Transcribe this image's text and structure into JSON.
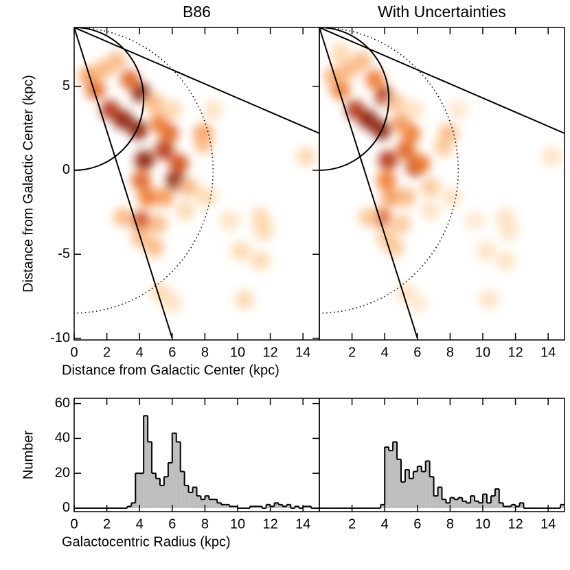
{
  "chart_data": [
    {
      "type": "heatmap",
      "title": "B86",
      "xlabel": "Distance from Galactic Center (kpc)",
      "ylabel": "Distance from Galactic Center (kpc)",
      "xlim": [
        0,
        15
      ],
      "ylim": [
        -10.1,
        8.5
      ],
      "xticks": [
        0,
        2,
        4,
        6,
        8,
        10,
        12,
        14
      ],
      "yticks": [
        -10,
        -5,
        0,
        5
      ],
      "sun": [
        0,
        8.5
      ],
      "lines": [
        [
          0,
          8.5,
          6,
          -10
        ],
        [
          0,
          8.5,
          15,
          2.2
        ]
      ],
      "solar_circle_radius": 8.5,
      "tangent_circle_radius": 4.25,
      "x": [
        1.3,
        2.2,
        3.0,
        3.9,
        4.1,
        3.4,
        0.9,
        1.8,
        2.6,
        4.3,
        5.5,
        6.2,
        5.8,
        5.2,
        4.9,
        4.1,
        4.5,
        5.5,
        6.4,
        7.0,
        7.9,
        7.9,
        8.5,
        6.0,
        4.1,
        3.0,
        5.1,
        4.9,
        4.1,
        5.3,
        6.0,
        10.4,
        11.4,
        11.6,
        10.2,
        11.4,
        9.5,
        14.2,
        8.1,
        6.8
      ],
      "y": [
        4.8,
        3.6,
        3.0,
        2.4,
        4.6,
        5.4,
        5.6,
        6.0,
        6.5,
        0.6,
        1.2,
        -0.6,
        2.2,
        2.8,
        4.0,
        -0.6,
        -1.6,
        -1.6,
        0.4,
        -1.0,
        2.2,
        1.6,
        3.6,
        3.6,
        -3.0,
        -2.8,
        -3.2,
        -4.6,
        -4.0,
        -7.3,
        -7.9,
        -7.7,
        -2.8,
        -3.6,
        -4.8,
        -5.4,
        -3.0,
        0.8,
        -1.6,
        -2.4
      ],
      "values": [
        0.6,
        0.8,
        0.9,
        0.9,
        0.9,
        0.6,
        0.4,
        0.3,
        0.3,
        0.9,
        0.8,
        0.9,
        0.6,
        0.5,
        0.3,
        0.6,
        0.5,
        0.4,
        0.7,
        0.3,
        0.4,
        0.3,
        0.15,
        0.2,
        0.7,
        0.3,
        0.3,
        0.3,
        0.3,
        0.2,
        0.15,
        0.2,
        0.2,
        0.2,
        0.2,
        0.2,
        0.15,
        0.2,
        0.2,
        0.2
      ]
    },
    {
      "type": "heatmap",
      "title": "With Uncertainties",
      "xlim": [
        0,
        15
      ],
      "ylim": [
        -10.1,
        8.5
      ],
      "xticks": [
        2,
        4,
        6,
        8,
        10,
        12,
        14
      ],
      "sun": [
        0,
        8.5
      ],
      "lines": [
        [
          0,
          8.5,
          6,
          -10
        ],
        [
          0,
          8.5,
          15,
          2.2
        ]
      ],
      "solar_circle_radius": 8.5,
      "tangent_circle_radius": 4.25,
      "x": [
        1.3,
        2.2,
        3.0,
        3.8,
        4.0,
        3.4,
        0.9,
        1.8,
        2.6,
        4.2,
        5.3,
        5.9,
        5.6,
        5.0,
        4.7,
        4.1,
        4.4,
        5.3,
        6.2,
        6.8,
        7.9,
        7.6,
        8.5,
        5.8,
        3.8,
        3.0,
        5.0,
        4.6,
        4.1,
        5.3,
        6.0,
        10.4,
        11.4,
        11.6,
        10.2,
        11.4,
        9.5,
        14.2,
        8.1,
        6.8,
        1.3
      ],
      "y": [
        4.8,
        3.6,
        3.0,
        2.4,
        4.4,
        5.4,
        5.6,
        6.0,
        6.5,
        0.6,
        1.2,
        0.2,
        2.2,
        2.8,
        4.0,
        -0.6,
        -1.6,
        -1.6,
        0.4,
        -1.0,
        2.2,
        1.4,
        3.6,
        3.6,
        -2.8,
        -2.8,
        -3.2,
        -4.6,
        -4.0,
        -7.3,
        -7.9,
        -7.7,
        -2.8,
        -3.6,
        -4.8,
        -5.4,
        -3.0,
        0.8,
        -1.6,
        -2.4,
        7.0
      ],
      "values": [
        0.5,
        0.8,
        0.9,
        0.9,
        0.8,
        0.5,
        0.35,
        0.3,
        0.3,
        0.8,
        0.6,
        0.8,
        0.5,
        0.4,
        0.25,
        0.5,
        0.4,
        0.3,
        0.5,
        0.25,
        0.3,
        0.25,
        0.12,
        0.15,
        0.6,
        0.25,
        0.25,
        0.25,
        0.25,
        0.15,
        0.12,
        0.15,
        0.15,
        0.15,
        0.15,
        0.15,
        0.12,
        0.15,
        0.15,
        0.15,
        0.2
      ]
    },
    {
      "type": "histogram",
      "xlabel": "Galactocentric Radius (kpc)",
      "ylabel": "Number",
      "xlim": [
        0,
        15
      ],
      "ylim": [
        -2,
        63
      ],
      "xticks": [
        0,
        2,
        4,
        6,
        8,
        10,
        12,
        14
      ],
      "yticks": [
        0,
        20,
        40,
        60
      ],
      "color": "#bebebe",
      "bins": [
        0,
        0.25,
        0.5,
        0.75,
        1,
        1.25,
        1.5,
        1.75,
        2,
        2.25,
        2.5,
        2.75,
        3,
        3.25,
        3.5,
        3.75,
        4,
        4.25,
        4.5,
        4.75,
        5,
        5.25,
        5.5,
        5.75,
        6,
        6.25,
        6.5,
        6.75,
        7,
        7.25,
        7.5,
        7.75,
        8,
        8.25,
        8.5,
        8.75,
        9,
        9.25,
        9.5,
        9.75,
        10,
        10.25,
        10.5,
        10.75,
        11,
        11.25,
        11.5,
        11.75,
        12,
        12.25,
        12.5,
        12.75,
        13,
        13.25,
        13.5,
        13.75,
        14,
        14.25,
        14.5,
        14.75,
        15
      ],
      "values": [
        0,
        0,
        0,
        0,
        0,
        0,
        0,
        0,
        0,
        0,
        0,
        0,
        0,
        1,
        3,
        20,
        20,
        53,
        38,
        20,
        17,
        13,
        18,
        26,
        43,
        38,
        21,
        13,
        9,
        12,
        7,
        5,
        7,
        5,
        5,
        3,
        2,
        2,
        1,
        1,
        0,
        0,
        0,
        1,
        1,
        1,
        0,
        2,
        1,
        3,
        2,
        1,
        2,
        0,
        1,
        0,
        1,
        1,
        0,
        0
      ]
    },
    {
      "type": "histogram",
      "xlim": [
        0,
        15
      ],
      "ylim": [
        -2,
        63
      ],
      "xticks": [
        2,
        4,
        6,
        8,
        10,
        12,
        14
      ],
      "color": "#bebebe",
      "bins": [
        0,
        0.25,
        0.5,
        0.75,
        1,
        1.25,
        1.5,
        1.75,
        2,
        2.25,
        2.5,
        2.75,
        3,
        3.25,
        3.5,
        3.75,
        4,
        4.25,
        4.5,
        4.75,
        5,
        5.25,
        5.5,
        5.75,
        6,
        6.25,
        6.5,
        6.75,
        7,
        7.25,
        7.5,
        7.75,
        8,
        8.25,
        8.5,
        8.75,
        9,
        9.25,
        9.5,
        9.75,
        10,
        10.25,
        10.5,
        10.75,
        11,
        11.25,
        11.5,
        11.75,
        12,
        12.25,
        12.5,
        12.75,
        13,
        13.25,
        13.5,
        13.75,
        14,
        14.25,
        14.5,
        14.75,
        15
      ],
      "values": [
        0,
        0,
        0,
        0,
        0,
        0,
        0,
        0,
        0,
        0,
        0,
        0,
        0,
        0,
        0,
        2,
        35,
        33,
        38,
        28,
        15,
        22,
        17,
        21,
        24,
        21,
        27,
        18,
        7,
        12,
        5,
        3,
        6,
        5,
        6,
        4,
        3,
        7,
        4,
        3,
        8,
        3,
        7,
        11,
        3,
        1,
        1,
        2,
        1,
        3,
        0,
        0,
        0,
        0,
        0,
        0,
        0,
        0,
        0,
        2
      ]
    }
  ]
}
